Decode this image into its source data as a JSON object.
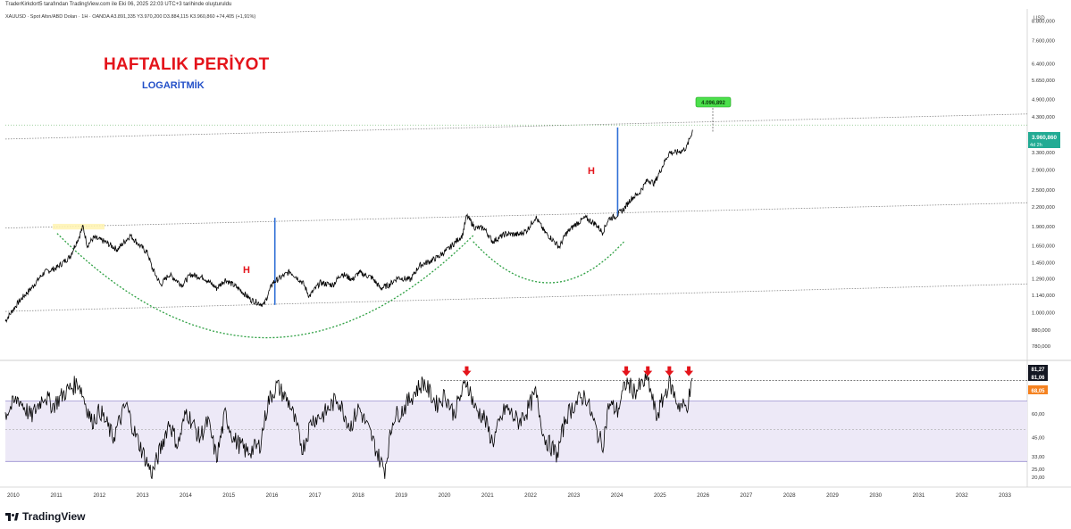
{
  "header": {
    "attribution": "TraderKirkdort5 tarafından TradingView.com ile Eki 06, 2025 22:03 UTC+3 tarihinde oluşturuldu",
    "symbol_line": "XAUUSD · Spot Altın/ABD Doları · 1H · OANDA  A3.891,335  Y3.970,200  D3.884,115  K3.960,860  +74,405 (+1,91%)"
  },
  "annotations": {
    "title": "HAFTALIK PERİYOT",
    "subtitle": "LOGARİTMİK",
    "pattern_label_1": "H",
    "pattern_label_2": "H",
    "target_label": "4.096,892"
  },
  "footer": {
    "brand": "TradingView"
  },
  "colors": {
    "price_line": "#000000",
    "title": "#e4141b",
    "subtitle": "#2350c8",
    "cup_curve": "#2ea043",
    "measure_line": "#2f6fd6",
    "channel_line": "#888888",
    "rsi_band": "#ede9f7",
    "rsi_band_border": "#9a8fd0",
    "last_price_badge": "#22ab94",
    "target_badge": "#4ce04c",
    "rsi_ma_badge": "#f58220",
    "signal_arrow": "#e4141b"
  },
  "chart_data": [
    {
      "type": "line",
      "name": "XAUUSD weekly (log scale)",
      "scale": "log",
      "y_unit": "USD",
      "y_axis_label": "USD",
      "x_tick_labels": [
        "2010",
        "2011",
        "2012",
        "2013",
        "2014",
        "2015",
        "2016",
        "2017",
        "2018",
        "2019",
        "2020",
        "2021",
        "2022",
        "2023",
        "2024",
        "2025",
        "2026",
        "2027",
        "2028",
        "2029",
        "2030",
        "2031",
        "2032",
        "2033"
      ],
      "y_tick_labels": [
        "780,000",
        "880,000",
        "1.000,000",
        "1.140,000",
        "1.290,000",
        "1.450,000",
        "1.650,000",
        "1.900,000",
        "2.200,000",
        "2.500,000",
        "2.900,000",
        "3.300,000",
        "4.300,000",
        "4.900,000",
        "5.650,000",
        "6.400,000",
        "7.600,000",
        "8.800,000"
      ],
      "y_ticks": [
        780,
        880,
        1000,
        1140,
        1290,
        1450,
        1650,
        1900,
        2200,
        2500,
        2900,
        3300,
        4300,
        4900,
        5650,
        6400,
        7600,
        8800
      ],
      "ylim": [
        720,
        9500
      ],
      "xlim": [
        2009.9,
        2033.6
      ],
      "last_price": 3960.86,
      "last_price_label": "3.960,860",
      "countdown_label": "4d 2h",
      "target_price": 4096.892,
      "points": [
        [
          2009.9,
          940
        ],
        [
          2010.2,
          1080
        ],
        [
          2010.5,
          1200
        ],
        [
          2010.8,
          1350
        ],
        [
          2011.1,
          1400
        ],
        [
          2011.4,
          1520
        ],
        [
          2011.6,
          1750
        ],
        [
          2011.7,
          1900
        ],
        [
          2011.8,
          1650
        ],
        [
          2011.95,
          1750
        ],
        [
          2012.2,
          1700
        ],
        [
          2012.5,
          1600
        ],
        [
          2012.8,
          1780
        ],
        [
          2013.0,
          1660
        ],
        [
          2013.2,
          1560
        ],
        [
          2013.3,
          1400
        ],
        [
          2013.5,
          1230
        ],
        [
          2013.7,
          1330
        ],
        [
          2014.0,
          1230
        ],
        [
          2014.2,
          1330
        ],
        [
          2014.5,
          1300
        ],
        [
          2014.8,
          1200
        ],
        [
          2015.0,
          1280
        ],
        [
          2015.3,
          1200
        ],
        [
          2015.6,
          1100
        ],
        [
          2015.9,
          1060
        ],
        [
          2016.1,
          1250
        ],
        [
          2016.5,
          1360
        ],
        [
          2016.8,
          1250
        ],
        [
          2016.95,
          1130
        ],
        [
          2017.2,
          1250
        ],
        [
          2017.5,
          1230
        ],
        [
          2017.7,
          1340
        ],
        [
          2017.95,
          1280
        ],
        [
          2018.1,
          1350
        ],
        [
          2018.4,
          1300
        ],
        [
          2018.6,
          1200
        ],
        [
          2018.8,
          1230
        ],
        [
          2019.0,
          1300
        ],
        [
          2019.3,
          1280
        ],
        [
          2019.5,
          1420
        ],
        [
          2019.8,
          1480
        ],
        [
          2019.95,
          1520
        ],
        [
          2020.2,
          1620
        ],
        [
          2020.5,
          1780
        ],
        [
          2020.6,
          2060
        ],
        [
          2020.8,
          1880
        ],
        [
          2021.0,
          1880
        ],
        [
          2021.2,
          1700
        ],
        [
          2021.5,
          1800
        ],
        [
          2021.8,
          1790
        ],
        [
          2022.0,
          1850
        ],
        [
          2022.2,
          2040
        ],
        [
          2022.4,
          1830
        ],
        [
          2022.6,
          1720
        ],
        [
          2022.75,
          1630
        ],
        [
          2022.9,
          1800
        ],
        [
          2023.1,
          1920
        ],
        [
          2023.35,
          2030
        ],
        [
          2023.6,
          1930
        ],
        [
          2023.75,
          1820
        ],
        [
          2023.9,
          2020
        ],
        [
          2024.05,
          2050
        ],
        [
          2024.25,
          2170
        ],
        [
          2024.4,
          2330
        ],
        [
          2024.6,
          2440
        ],
        [
          2024.8,
          2700
        ],
        [
          2024.95,
          2620
        ],
        [
          2025.1,
          2900
        ],
        [
          2025.3,
          3300
        ],
        [
          2025.45,
          3300
        ],
        [
          2025.6,
          3350
        ],
        [
          2025.7,
          3430
        ],
        [
          2025.8,
          3750
        ],
        [
          2025.85,
          3960
        ]
      ],
      "regions_annotated": [
        {
          "label": "H",
          "x": 2015.2,
          "y": 1500
        },
        {
          "label": "H",
          "x": 2023.2,
          "y": 2900
        }
      ]
    },
    {
      "type": "line",
      "name": "RSI",
      "ylim": [
        15,
        92
      ],
      "y_ticks": [
        20,
        25,
        33,
        45,
        60
      ],
      "y_tick_labels": [
        "20,00",
        "25,00",
        "33,00",
        "45,00",
        "60,00"
      ],
      "upper_band": 68.05,
      "lower_band": 30,
      "current_value_label": "81,27",
      "previous_peak_label": "81,06",
      "ma_value_label": "68,05",
      "signal_arrows_x": [
        2020.6,
        2024.3,
        2024.8,
        2025.3,
        2025.75
      ],
      "points": [
        [
          2009.9,
          60
        ],
        [
          2010.2,
          70
        ],
        [
          2010.5,
          58
        ],
        [
          2010.8,
          72
        ],
        [
          2011.0,
          65
        ],
        [
          2011.3,
          74
        ],
        [
          2011.6,
          80
        ],
        [
          2011.9,
          55
        ],
        [
          2012.1,
          62
        ],
        [
          2012.4,
          45
        ],
        [
          2012.7,
          66
        ],
        [
          2012.9,
          48
        ],
        [
          2013.1,
          35
        ],
        [
          2013.3,
          22
        ],
        [
          2013.5,
          38
        ],
        [
          2013.7,
          55
        ],
        [
          2013.9,
          40
        ],
        [
          2014.1,
          62
        ],
        [
          2014.4,
          45
        ],
        [
          2014.6,
          55
        ],
        [
          2014.8,
          32
        ],
        [
          2015.0,
          60
        ],
        [
          2015.2,
          44
        ],
        [
          2015.5,
          36
        ],
        [
          2015.8,
          40
        ],
        [
          2016.0,
          68
        ],
        [
          2016.2,
          78
        ],
        [
          2016.5,
          66
        ],
        [
          2016.8,
          38
        ],
        [
          2017.0,
          56
        ],
        [
          2017.3,
          60
        ],
        [
          2017.6,
          70
        ],
        [
          2017.9,
          52
        ],
        [
          2018.1,
          64
        ],
        [
          2018.4,
          45
        ],
        [
          2018.6,
          30
        ],
        [
          2018.7,
          25
        ],
        [
          2018.9,
          58
        ],
        [
          2019.1,
          62
        ],
        [
          2019.4,
          74
        ],
        [
          2019.6,
          80
        ],
        [
          2019.9,
          66
        ],
        [
          2020.1,
          72
        ],
        [
          2020.3,
          60
        ],
        [
          2020.6,
          81
        ],
        [
          2020.8,
          63
        ],
        [
          2021.0,
          58
        ],
        [
          2021.2,
          42
        ],
        [
          2021.5,
          64
        ],
        [
          2021.8,
          55
        ],
        [
          2022.0,
          62
        ],
        [
          2022.2,
          73
        ],
        [
          2022.4,
          45
        ],
        [
          2022.7,
          34
        ],
        [
          2022.9,
          58
        ],
        [
          2023.1,
          66
        ],
        [
          2023.35,
          72
        ],
        [
          2023.6,
          50
        ],
        [
          2023.75,
          40
        ],
        [
          2023.9,
          66
        ],
        [
          2024.1,
          62
        ],
        [
          2024.3,
          80
        ],
        [
          2024.5,
          74
        ],
        [
          2024.8,
          82
        ],
        [
          2025.0,
          58
        ],
        [
          2025.3,
          80
        ],
        [
          2025.5,
          66
        ],
        [
          2025.7,
          64
        ],
        [
          2025.85,
          81.27
        ]
      ]
    }
  ]
}
